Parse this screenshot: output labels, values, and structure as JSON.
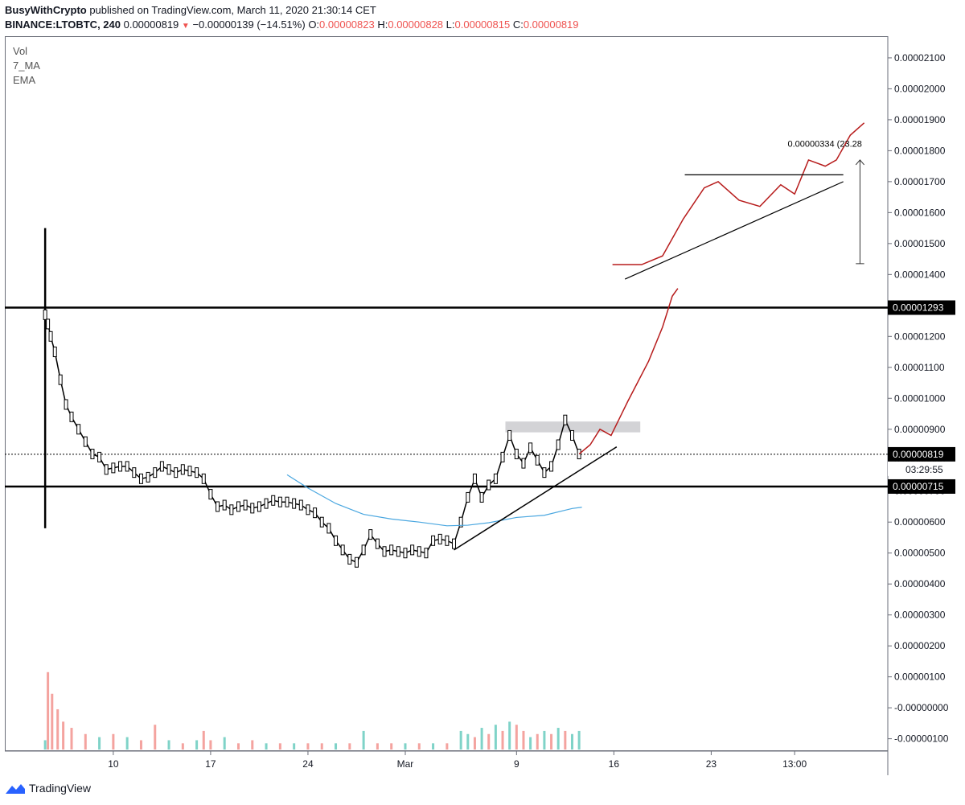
{
  "header": {
    "author": "BusyWithCrypto",
    "published_text": " published on TradingView.com, March 11, 2020 21:30:14 CET",
    "symbol": "BINANCE:LTOBTC, 240",
    "last_price": "0.00000819",
    "change": "−0.00000139 (−14.51%)",
    "o_label": "O:",
    "o_value": "0.00000823",
    "h_label": "H:",
    "h_value": "0.00000828",
    "l_label": "L:",
    "l_value": "0.00000815",
    "c_label": "C:",
    "c_value": "0.00000819"
  },
  "legend": {
    "vol": "Vol",
    "ma": "7_MA",
    "ema": "EMA"
  },
  "footer": {
    "brand": "TradingView"
  },
  "colors": {
    "up_volume": "#7fd3c8",
    "down_volume": "#f4a39f",
    "ema": "#4aa7e0",
    "forecast": "#b71c1c",
    "price_line": "#000000"
  },
  "chart_data": {
    "type": "candlestick",
    "title": "BINANCE:LTOBTC, 240",
    "y_ticks": [
      "0.00002100",
      "0.00002000",
      "0.00001900",
      "0.00001800",
      "0.00001700",
      "0.00001600",
      "0.00001500",
      "0.00001400",
      "0.00001300",
      "0.00001200",
      "0.00001100",
      "0.00001000",
      "0.00000900",
      "0.00000800",
      "0.00000700",
      "0.00000600",
      "0.00000500",
      "0.00000400",
      "0.00000300",
      "0.00000200",
      "0.00000100",
      "-0.00000000",
      "-0.00000100"
    ],
    "y_tick_values": [
      2.1e-05,
      2e-05,
      1.9e-05,
      1.8e-05,
      1.7e-05,
      1.6e-05,
      1.5e-05,
      1.4e-05,
      1.3e-05,
      1.2e-05,
      1.1e-05,
      1e-05,
      9e-06,
      8e-06,
      7e-06,
      6e-06,
      5e-06,
      4e-06,
      3e-06,
      2e-06,
      1e-06,
      0,
      -1e-06
    ],
    "x_ticks": [
      "10",
      "17",
      "24",
      "Mar",
      "9",
      "16",
      "23",
      "13:00"
    ],
    "x_tick_days": [
      10,
      17,
      24,
      31,
      39,
      46,
      53,
      59
    ],
    "ylim": [
      -1.4e-06,
      2.17e-05
    ],
    "xlim": [
      2.2,
      65.7
    ],
    "resistance_level": {
      "label": "0.00001293",
      "value": 1.293e-05
    },
    "support_level": {
      "label": "0.00000715",
      "value": 7.15e-06
    },
    "current_price": {
      "label": "0.00000819",
      "value": 8.19e-06
    },
    "countdown": "03:29:55",
    "measure_label": "0.00000334 (23.28",
    "price_series": [
      {
        "x": 5.1,
        "y": 1.27e-05
      },
      {
        "x": 5.3,
        "y": 1.24e-05
      },
      {
        "x": 5.5,
        "y": 1.2e-05
      },
      {
        "x": 5.8,
        "y": 1.15e-05
      },
      {
        "x": 6.2,
        "y": 1.06e-05
      },
      {
        "x": 6.6,
        "y": 9.8e-06
      },
      {
        "x": 7.0,
        "y": 9.4e-06
      },
      {
        "x": 7.5,
        "y": 9e-06
      },
      {
        "x": 8.0,
        "y": 8.6e-06
      },
      {
        "x": 8.5,
        "y": 8.2e-06
      },
      {
        "x": 9.0,
        "y": 8.1e-06
      },
      {
        "x": 9.5,
        "y": 7.7e-06
      },
      {
        "x": 10.0,
        "y": 7.75e-06
      },
      {
        "x": 10.5,
        "y": 7.8e-06
      },
      {
        "x": 11.0,
        "y": 7.8e-06
      },
      {
        "x": 11.5,
        "y": 7.6e-06
      },
      {
        "x": 12.0,
        "y": 7.4e-06
      },
      {
        "x": 12.5,
        "y": 7.45e-06
      },
      {
        "x": 13.0,
        "y": 7.6e-06
      },
      {
        "x": 13.5,
        "y": 7.8e-06
      },
      {
        "x": 14.0,
        "y": 7.7e-06
      },
      {
        "x": 14.5,
        "y": 7.6e-06
      },
      {
        "x": 15.0,
        "y": 7.7e-06
      },
      {
        "x": 15.5,
        "y": 7.65e-06
      },
      {
        "x": 16.0,
        "y": 7.6e-06
      },
      {
        "x": 16.5,
        "y": 7.4e-06
      },
      {
        "x": 17.0,
        "y": 6.9e-06
      },
      {
        "x": 17.5,
        "y": 6.5e-06
      },
      {
        "x": 18.0,
        "y": 6.55e-06
      },
      {
        "x": 18.5,
        "y": 6.4e-06
      },
      {
        "x": 19.0,
        "y": 6.5e-06
      },
      {
        "x": 19.5,
        "y": 6.55e-06
      },
      {
        "x": 20.0,
        "y": 6.45e-06
      },
      {
        "x": 20.5,
        "y": 6.5e-06
      },
      {
        "x": 21.0,
        "y": 6.6e-06
      },
      {
        "x": 21.5,
        "y": 6.7e-06
      },
      {
        "x": 22.0,
        "y": 6.65e-06
      },
      {
        "x": 22.5,
        "y": 6.65e-06
      },
      {
        "x": 23.0,
        "y": 6.6e-06
      },
      {
        "x": 23.5,
        "y": 6.55e-06
      },
      {
        "x": 24.0,
        "y": 6.4e-06
      },
      {
        "x": 24.5,
        "y": 6.3e-06
      },
      {
        "x": 25.0,
        "y": 6e-06
      },
      {
        "x": 25.5,
        "y": 5.8e-06
      },
      {
        "x": 26.0,
        "y": 5.4e-06
      },
      {
        "x": 26.5,
        "y": 5.1e-06
      },
      {
        "x": 27.0,
        "y": 4.8e-06
      },
      {
        "x": 27.5,
        "y": 4.7e-06
      },
      {
        "x": 28.0,
        "y": 5.1e-06
      },
      {
        "x": 28.5,
        "y": 5.6e-06
      },
      {
        "x": 29.0,
        "y": 5.3e-06
      },
      {
        "x": 29.5,
        "y": 5.05e-06
      },
      {
        "x": 30.0,
        "y": 5.1e-06
      },
      {
        "x": 30.5,
        "y": 5.05e-06
      },
      {
        "x": 31.0,
        "y": 5e-06
      },
      {
        "x": 31.5,
        "y": 5.1e-06
      },
      {
        "x": 32.0,
        "y": 5.05e-06
      },
      {
        "x": 32.5,
        "y": 5e-06
      },
      {
        "x": 33.0,
        "y": 5.4e-06
      },
      {
        "x": 33.5,
        "y": 5.45e-06
      },
      {
        "x": 34.0,
        "y": 5.4e-06
      },
      {
        "x": 34.5,
        "y": 5.3e-06
      },
      {
        "x": 35.0,
        "y": 6e-06
      },
      {
        "x": 35.5,
        "y": 6.8e-06
      },
      {
        "x": 36.0,
        "y": 7.4e-06
      },
      {
        "x": 36.5,
        "y": 6.8e-06
      },
      {
        "x": 37.0,
        "y": 7.2e-06
      },
      {
        "x": 37.5,
        "y": 7.4e-06
      },
      {
        "x": 38.0,
        "y": 8.1e-06
      },
      {
        "x": 38.5,
        "y": 8.8e-06
      },
      {
        "x": 39.0,
        "y": 8.2e-06
      },
      {
        "x": 39.5,
        "y": 7.9e-06
      },
      {
        "x": 40.0,
        "y": 8.4e-06
      },
      {
        "x": 40.5,
        "y": 8e-06
      },
      {
        "x": 41.0,
        "y": 7.6e-06
      },
      {
        "x": 41.5,
        "y": 7.8e-06
      },
      {
        "x": 42.0,
        "y": 8.5e-06
      },
      {
        "x": 42.5,
        "y": 9.3e-06
      },
      {
        "x": 43.0,
        "y": 8.8e-06
      },
      {
        "x": 43.5,
        "y": 8.2e-06
      }
    ],
    "ema_series": [
      {
        "x": 22.5,
        "y": 7.53e-06
      },
      {
        "x": 24.0,
        "y": 7.1e-06
      },
      {
        "x": 26.0,
        "y": 6.6e-06
      },
      {
        "x": 28.0,
        "y": 6.25e-06
      },
      {
        "x": 30.0,
        "y": 6.1e-06
      },
      {
        "x": 32.0,
        "y": 6e-06
      },
      {
        "x": 34.0,
        "y": 5.88e-06
      },
      {
        "x": 35.5,
        "y": 5.9e-06
      },
      {
        "x": 37.0,
        "y": 5.98e-06
      },
      {
        "x": 39.0,
        "y": 6.15e-06
      },
      {
        "x": 41.0,
        "y": 6.22e-06
      },
      {
        "x": 43.0,
        "y": 6.44e-06
      },
      {
        "x": 43.7,
        "y": 6.48e-06
      }
    ],
    "volume_series": [
      {
        "x": 5.1,
        "y": 3e-07,
        "up": true
      },
      {
        "x": 5.3,
        "y": 2.5e-06,
        "up": false
      },
      {
        "x": 5.6,
        "y": 1.8e-06,
        "up": false
      },
      {
        "x": 6.0,
        "y": 1.3e-06,
        "up": false
      },
      {
        "x": 6.4,
        "y": 9e-07,
        "up": false
      },
      {
        "x": 7.0,
        "y": 7e-07,
        "up": false
      },
      {
        "x": 8.0,
        "y": 5e-07,
        "up": false
      },
      {
        "x": 9.0,
        "y": 4e-07,
        "up": true
      },
      {
        "x": 10.0,
        "y": 5e-07,
        "up": false
      },
      {
        "x": 11.0,
        "y": 4e-07,
        "up": true
      },
      {
        "x": 12.0,
        "y": 3e-07,
        "up": false
      },
      {
        "x": 13.0,
        "y": 8e-07,
        "up": false
      },
      {
        "x": 14.0,
        "y": 3e-07,
        "up": true
      },
      {
        "x": 15.0,
        "y": 2e-07,
        "up": false
      },
      {
        "x": 16.0,
        "y": 3e-07,
        "up": true
      },
      {
        "x": 16.5,
        "y": 6e-07,
        "up": false
      },
      {
        "x": 17.0,
        "y": 3e-07,
        "up": false
      },
      {
        "x": 18.0,
        "y": 4e-07,
        "up": true
      },
      {
        "x": 19.0,
        "y": 2e-07,
        "up": false
      },
      {
        "x": 20.0,
        "y": 3e-07,
        "up": false
      },
      {
        "x": 21.0,
        "y": 2e-07,
        "up": true
      },
      {
        "x": 22.0,
        "y": 2e-07,
        "up": false
      },
      {
        "x": 23.0,
        "y": 2e-07,
        "up": true
      },
      {
        "x": 24.0,
        "y": 2e-07,
        "up": false
      },
      {
        "x": 25.0,
        "y": 2e-07,
        "up": false
      },
      {
        "x": 26.0,
        "y": 2e-07,
        "up": true
      },
      {
        "x": 27.0,
        "y": 2e-07,
        "up": false
      },
      {
        "x": 28.0,
        "y": 6e-07,
        "up": true
      },
      {
        "x": 29.0,
        "y": 2e-07,
        "up": false
      },
      {
        "x": 30.0,
        "y": 2e-07,
        "up": false
      },
      {
        "x": 31.0,
        "y": 2e-07,
        "up": true
      },
      {
        "x": 32.0,
        "y": 2e-07,
        "up": false
      },
      {
        "x": 33.0,
        "y": 2e-07,
        "up": true
      },
      {
        "x": 34.0,
        "y": 2e-07,
        "up": false
      },
      {
        "x": 35.0,
        "y": 6e-07,
        "up": true
      },
      {
        "x": 35.5,
        "y": 5e-07,
        "up": true
      },
      {
        "x": 36.0,
        "y": 4e-07,
        "up": false
      },
      {
        "x": 36.5,
        "y": 7e-07,
        "up": true
      },
      {
        "x": 37.0,
        "y": 5e-07,
        "up": false
      },
      {
        "x": 37.5,
        "y": 8e-07,
        "up": true
      },
      {
        "x": 38.0,
        "y": 6e-07,
        "up": false
      },
      {
        "x": 38.5,
        "y": 9e-07,
        "up": true
      },
      {
        "x": 39.0,
        "y": 8e-07,
        "up": false
      },
      {
        "x": 39.5,
        "y": 6e-07,
        "up": false
      },
      {
        "x": 40.0,
        "y": 4e-07,
        "up": true
      },
      {
        "x": 40.5,
        "y": 5e-07,
        "up": false
      },
      {
        "x": 41.0,
        "y": 6e-07,
        "up": true
      },
      {
        "x": 41.5,
        "y": 5e-07,
        "up": false
      },
      {
        "x": 42.0,
        "y": 7e-07,
        "up": true
      },
      {
        "x": 42.5,
        "y": 6e-07,
        "up": false
      },
      {
        "x": 43.0,
        "y": 5e-07,
        "up": true
      },
      {
        "x": 43.5,
        "y": 6e-07,
        "up": true
      }
    ]
  }
}
